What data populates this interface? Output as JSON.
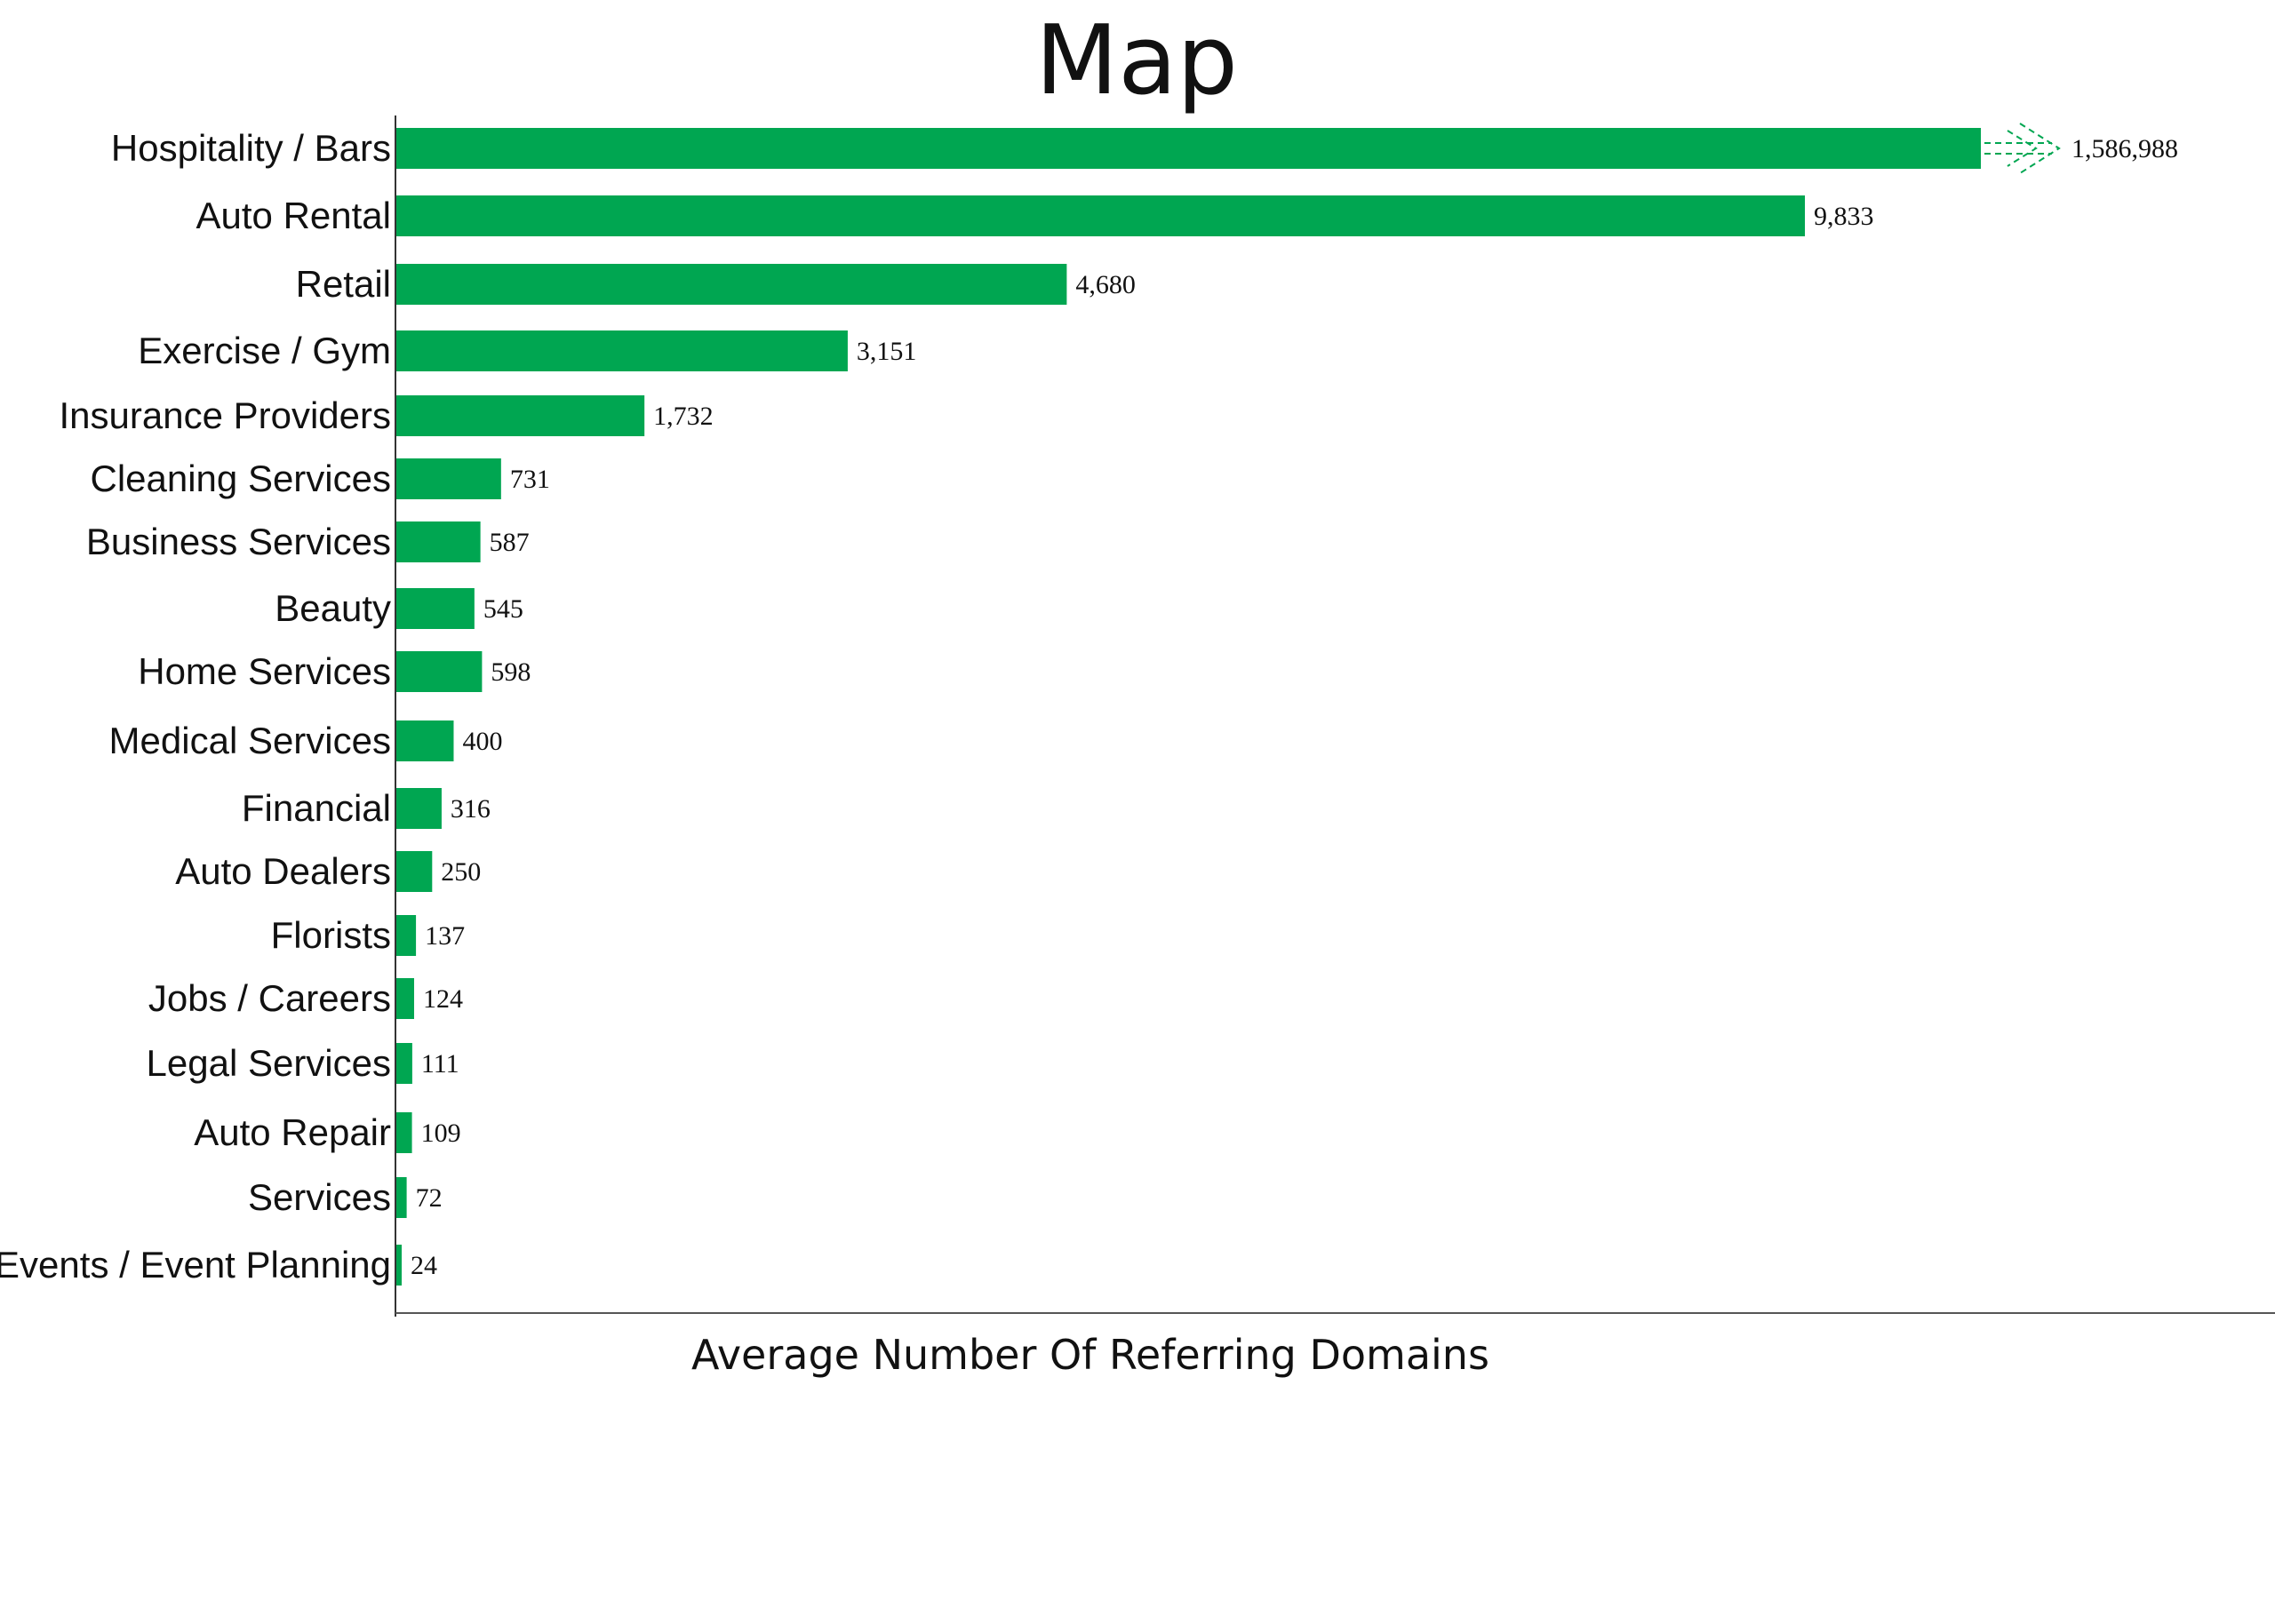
{
  "chart_data": {
    "type": "bar",
    "orientation": "horizontal",
    "title": "Map",
    "xlabel": "Average Number Of Referring Domains",
    "ylabel": "",
    "bar_color": "#00A651",
    "grid": false,
    "legend": "none",
    "axis_break_on": "Hospitality / Bars",
    "categories": [
      "Hospitality / Bars",
      "Auto Rental",
      "Retail",
      "Exercise / Gym",
      "Insurance Providers",
      "Cleaning Services",
      "Business Services",
      "Beauty",
      "Home Services",
      "Medical Services",
      "Financial",
      "Auto Dealers",
      "Florists",
      "Jobs / Careers",
      "Legal Services",
      "Auto Repair",
      "Services",
      "Events / Event Planning"
    ],
    "values": [
      1586988,
      9833,
      4680,
      3151,
      1732,
      731,
      587,
      545,
      598,
      400,
      316,
      250,
      137,
      124,
      111,
      109,
      72,
      24
    ],
    "value_labels": [
      "1,586,988",
      "9,833",
      "4,680",
      "3,151",
      "1,732",
      "731",
      "587",
      "545",
      "598",
      "400",
      "316",
      "250",
      "137",
      "124",
      "111",
      "109",
      "72",
      "24"
    ]
  }
}
